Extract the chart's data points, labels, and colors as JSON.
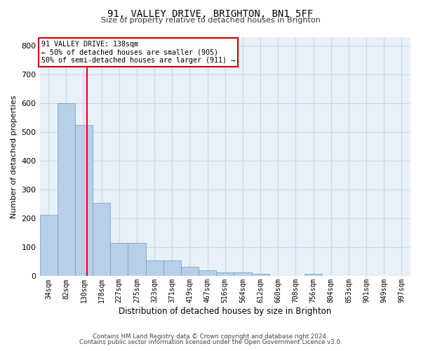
{
  "title1": "91, VALLEY DRIVE, BRIGHTON, BN1 5FF",
  "title2": "Size of property relative to detached houses in Brighton",
  "xlabel": "Distribution of detached houses by size in Brighton",
  "ylabel": "Number of detached properties",
  "footnote1": "Contains HM Land Registry data © Crown copyright and database right 2024.",
  "footnote2": "Contains public sector information licensed under the Open Government Licence v3.0.",
  "bar_labels": [
    "34sqm",
    "82sqm",
    "130sqm",
    "178sqm",
    "227sqm",
    "275sqm",
    "323sqm",
    "371sqm",
    "419sqm",
    "467sqm",
    "516sqm",
    "564sqm",
    "612sqm",
    "660sqm",
    "708sqm",
    "756sqm",
    "804sqm",
    "853sqm",
    "901sqm",
    "949sqm",
    "997sqm"
  ],
  "bar_values": [
    213,
    600,
    525,
    253,
    116,
    116,
    55,
    55,
    33,
    20,
    14,
    14,
    8,
    0,
    0,
    8,
    0,
    0,
    0,
    0,
    0
  ],
  "bar_color": "#b8cfe8",
  "bar_edge_color": "#6b9fc8",
  "grid_color": "#c8d8e8",
  "plot_bg_color": "#e8f0f8",
  "fig_bg_color": "#ffffff",
  "red_line_x": 2.18,
  "annotation_line0": "91 VALLEY DRIVE: 138sqm",
  "annotation_line1": "← 50% of detached houses are smaller (905)",
  "annotation_line2": "50% of semi-detached houses are larger (911) →",
  "box_facecolor": "#ffffff",
  "box_edgecolor": "#cc0000",
  "ylim": [
    0,
    830
  ],
  "yticks": [
    0,
    100,
    200,
    300,
    400,
    500,
    600,
    700,
    800
  ]
}
